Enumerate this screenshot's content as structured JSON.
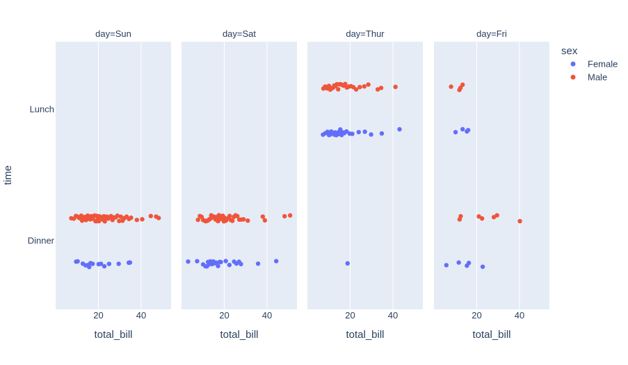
{
  "chart_data": {
    "type": "scatter",
    "variant": "strip",
    "facet_by": "day",
    "facets": [
      {
        "title": "day=Sun",
        "points": [
          {
            "sex": "Male",
            "time": "Dinner",
            "x": [
              7.3,
              8.5,
              9.5,
              10.3,
              11.0,
              11.6,
              12.0,
              12.4,
              12.9,
              13.3,
              13.7,
              14.2,
              14.6,
              15.0,
              15.4,
              15.8,
              16.2,
              16.6,
              17.0,
              17.4,
              17.8,
              18.2,
              18.6,
              19.0,
              19.4,
              19.8,
              20.2,
              20.6,
              21.0,
              21.4,
              21.8,
              22.2,
              22.6,
              23.0,
              23.5,
              24.0,
              24.6,
              25.2,
              25.9,
              26.6,
              27.3,
              28.1,
              28.9,
              29.7,
              30.5,
              31.3,
              32.2,
              33.2,
              34.3,
              35.3,
              38.0,
              40.5,
              44.5,
              47.0,
              48.2
            ]
          },
          {
            "sex": "Female",
            "time": "Dinner",
            "x": [
              9.6,
              10.3,
              12.7,
              14.0,
              15.0,
              15.7,
              16.3,
              17.3,
              20.1,
              21.2,
              22.8,
              25.0,
              29.5,
              34.2,
              34.8
            ]
          }
        ]
      },
      {
        "title": "day=Sat",
        "points": [
          {
            "sex": "Male",
            "time": "Dinner",
            "x": [
              7.7,
              8.6,
              9.4,
              10.1,
              10.7,
              11.3,
              11.8,
              12.3,
              12.7,
              13.1,
              13.5,
              13.9,
              14.3,
              14.7,
              15.1,
              15.5,
              15.9,
              16.3,
              16.7,
              17.1,
              17.5,
              17.9,
              18.3,
              18.8,
              19.3,
              19.8,
              20.3,
              20.8,
              21.3,
              21.9,
              22.5,
              23.1,
              23.8,
              24.5,
              25.3,
              26.1,
              27.0,
              28.0,
              29.0,
              31.0,
              38.0,
              39.0,
              48.2,
              50.8
            ]
          },
          {
            "sex": "Female",
            "time": "Dinner",
            "x": [
              3.1,
              7.3,
              10.1,
              11.2,
              11.9,
              12.4,
              13.0,
              13.4,
              13.8,
              14.3,
              14.8,
              15.4,
              15.9,
              16.4,
              17.1,
              17.8,
              18.4,
              20.7,
              22.4,
              24.6,
              25.7,
              26.9,
              27.8,
              35.8,
              44.3
            ]
          }
        ]
      },
      {
        "title": "day=Thur",
        "points": [
          {
            "sex": "Male",
            "time": "Lunch",
            "x": [
              7.5,
              8.3,
              9.2,
              10.1,
              10.7,
              11.4,
              12.0,
              12.6,
              13.2,
              13.8,
              14.4,
              15.0,
              15.6,
              16.3,
              17.0,
              17.7,
              18.5,
              19.4,
              20.3,
              21.5,
              22.8,
              24.5,
              26.6,
              28.5,
              32.9,
              34.5,
              41.2
            ]
          },
          {
            "sex": "Female",
            "time": "Lunch",
            "x": [
              7.3,
              8.4,
              9.4,
              10.1,
              10.7,
              11.1,
              11.5,
              11.9,
              12.3,
              12.7,
              13.1,
              13.5,
              13.9,
              14.4,
              14.9,
              15.4,
              16.0,
              16.6,
              17.3,
              18.3,
              19.8,
              21.0,
              24.0,
              26.9,
              29.8,
              34.8,
              43.1
            ]
          },
          {
            "sex": "Female",
            "time": "Dinner",
            "x": [
              18.8
            ]
          }
        ]
      },
      {
        "title": "day=Fri",
        "points": [
          {
            "sex": "Male",
            "time": "Lunch",
            "x": [
              8.0,
              11.9,
              12.4,
              13.4
            ]
          },
          {
            "sex": "Male",
            "time": "Dinner",
            "x": [
              12.0,
              12.5,
              21.0,
              22.5,
              28.0,
              29.5,
              40.2
            ]
          },
          {
            "sex": "Female",
            "time": "Lunch",
            "x": [
              10.1,
              13.4,
              15.4,
              16.0
            ]
          },
          {
            "sex": "Female",
            "time": "Dinner",
            "x": [
              5.8,
              11.6,
              15.4,
              16.3,
              22.8
            ]
          }
        ]
      }
    ],
    "y_categories": [
      "Lunch",
      "Dinner"
    ],
    "x_range": [
      0,
      54
    ],
    "x_ticks": [
      20,
      40
    ],
    "xlabel": "total_bill",
    "ylabel": "time",
    "legend": {
      "title": "sex",
      "position": "top-right",
      "items": [
        {
          "name": "Female",
          "color": "#636efa"
        },
        {
          "name": "Male",
          "color": "#ef553b"
        }
      ]
    },
    "grid": true
  }
}
